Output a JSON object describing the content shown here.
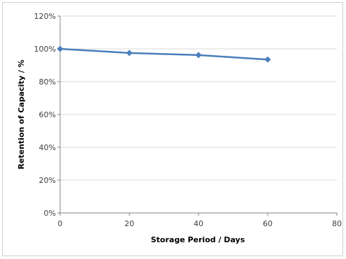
{
  "chart_data": {
    "type": "line",
    "title": "",
    "xlabel": "Storage Period / Days",
    "ylabel": "Retention of Capacity / %",
    "xlim": [
      0,
      80
    ],
    "ylim": [
      0,
      1.2
    ],
    "x_ticks": [
      0,
      20,
      40,
      60,
      80
    ],
    "y_ticks": [
      0,
      0.2,
      0.4,
      0.6,
      0.8,
      1.0,
      1.2
    ],
    "x_tick_labels": [
      "0",
      "20",
      "40",
      "60",
      "80"
    ],
    "y_tick_labels": [
      "0%",
      "20%",
      "40%",
      "60%",
      "80%",
      "100%",
      "120%"
    ],
    "grid": "horizontal",
    "legend": "none",
    "series": [
      {
        "x": [
          0,
          20,
          40,
          60
        ],
        "values": [
          1.0,
          0.975,
          0.962,
          0.935
        ],
        "color": "#4a7ebb",
        "marker": "diamond"
      }
    ]
  }
}
